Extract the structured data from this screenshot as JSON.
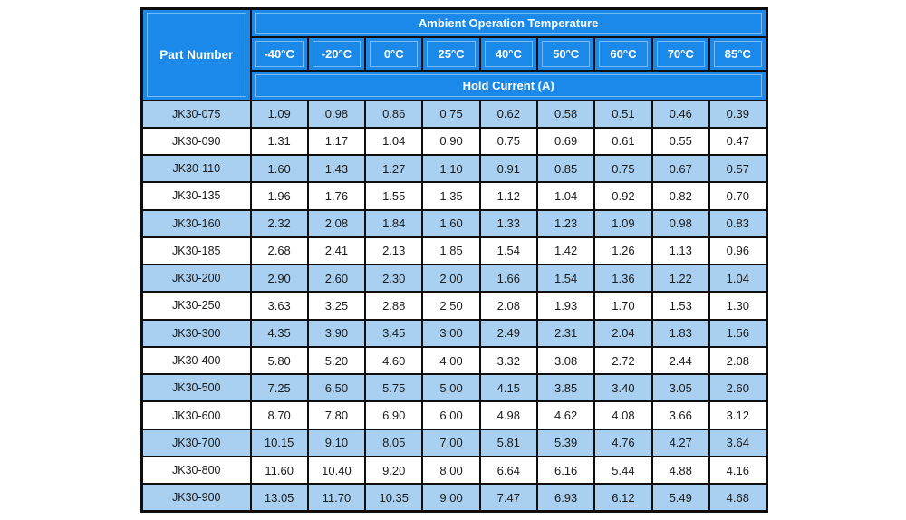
{
  "table": {
    "corner_header": "Part Number",
    "group_header": "Ambient Operation Temperature",
    "unit_header": "Hold Current (A)",
    "temperature_columns": [
      "-40°C",
      "-20°C",
      "0°C",
      "25°C",
      "40°C",
      "50°C",
      "60°C",
      "70°C",
      "85°C"
    ],
    "rows": [
      {
        "part": "JK30-075",
        "values": [
          "1.09",
          "0.98",
          "0.86",
          "0.75",
          "0.62",
          "0.58",
          "0.51",
          "0.46",
          "0.39"
        ]
      },
      {
        "part": "JK30-090",
        "values": [
          "1.31",
          "1.17",
          "1.04",
          "0.90",
          "0.75",
          "0.69",
          "0.61",
          "0.55",
          "0.47"
        ]
      },
      {
        "part": "JK30-110",
        "values": [
          "1.60",
          "1.43",
          "1.27",
          "1.10",
          "0.91",
          "0.85",
          "0.75",
          "0.67",
          "0.57"
        ]
      },
      {
        "part": "JK30-135",
        "values": [
          "1.96",
          "1.76",
          "1.55",
          "1.35",
          "1.12",
          "1.04",
          "0.92",
          "0.82",
          "0.70"
        ]
      },
      {
        "part": "JK30-160",
        "values": [
          "2.32",
          "2.08",
          "1.84",
          "1.60",
          "1.33",
          "1.23",
          "1.09",
          "0.98",
          "0.83"
        ]
      },
      {
        "part": "JK30-185",
        "values": [
          "2.68",
          "2.41",
          "2.13",
          "1.85",
          "1.54",
          "1.42",
          "1.26",
          "1.13",
          "0.96"
        ]
      },
      {
        "part": "JK30-200",
        "values": [
          "2.90",
          "2.60",
          "2.30",
          "2.00",
          "1.66",
          "1.54",
          "1.36",
          "1.22",
          "1.04"
        ]
      },
      {
        "part": "JK30-250",
        "values": [
          "3.63",
          "3.25",
          "2.88",
          "2.50",
          "2.08",
          "1.93",
          "1.70",
          "1.53",
          "1.30"
        ]
      },
      {
        "part": "JK30-300",
        "values": [
          "4.35",
          "3.90",
          "3.45",
          "3.00",
          "2.49",
          "2.31",
          "2.04",
          "1.83",
          "1.56"
        ]
      },
      {
        "part": "JK30-400",
        "values": [
          "5.80",
          "5.20",
          "4.60",
          "4.00",
          "3.32",
          "3.08",
          "2.72",
          "2.44",
          "2.08"
        ]
      },
      {
        "part": "JK30-500",
        "values": [
          "7.25",
          "6.50",
          "5.75",
          "5.00",
          "4.15",
          "3.85",
          "3.40",
          "3.05",
          "2.60"
        ]
      },
      {
        "part": "JK30-600",
        "values": [
          "8.70",
          "7.80",
          "6.90",
          "6.00",
          "4.98",
          "4.62",
          "4.08",
          "3.66",
          "3.12"
        ]
      },
      {
        "part": "JK30-700",
        "values": [
          "10.15",
          "9.10",
          "8.05",
          "7.00",
          "5.81",
          "5.39",
          "4.76",
          "4.27",
          "3.64"
        ]
      },
      {
        "part": "JK30-800",
        "values": [
          "11.60",
          "10.40",
          "9.20",
          "8.00",
          "6.64",
          "6.16",
          "5.44",
          "4.88",
          "4.16"
        ]
      },
      {
        "part": "JK30-900",
        "values": [
          "13.05",
          "11.70",
          "10.35",
          "9.00",
          "7.47",
          "6.93",
          "6.12",
          "5.49",
          "4.68"
        ]
      }
    ]
  },
  "colors": {
    "header_blue": "#1a89e9",
    "alt_row_blue": "#a9d0f0",
    "row_white": "#ffffff",
    "border_black": "#0e0e0e",
    "header_text": "#ffffff",
    "cell_text": "#1b1b1b"
  }
}
